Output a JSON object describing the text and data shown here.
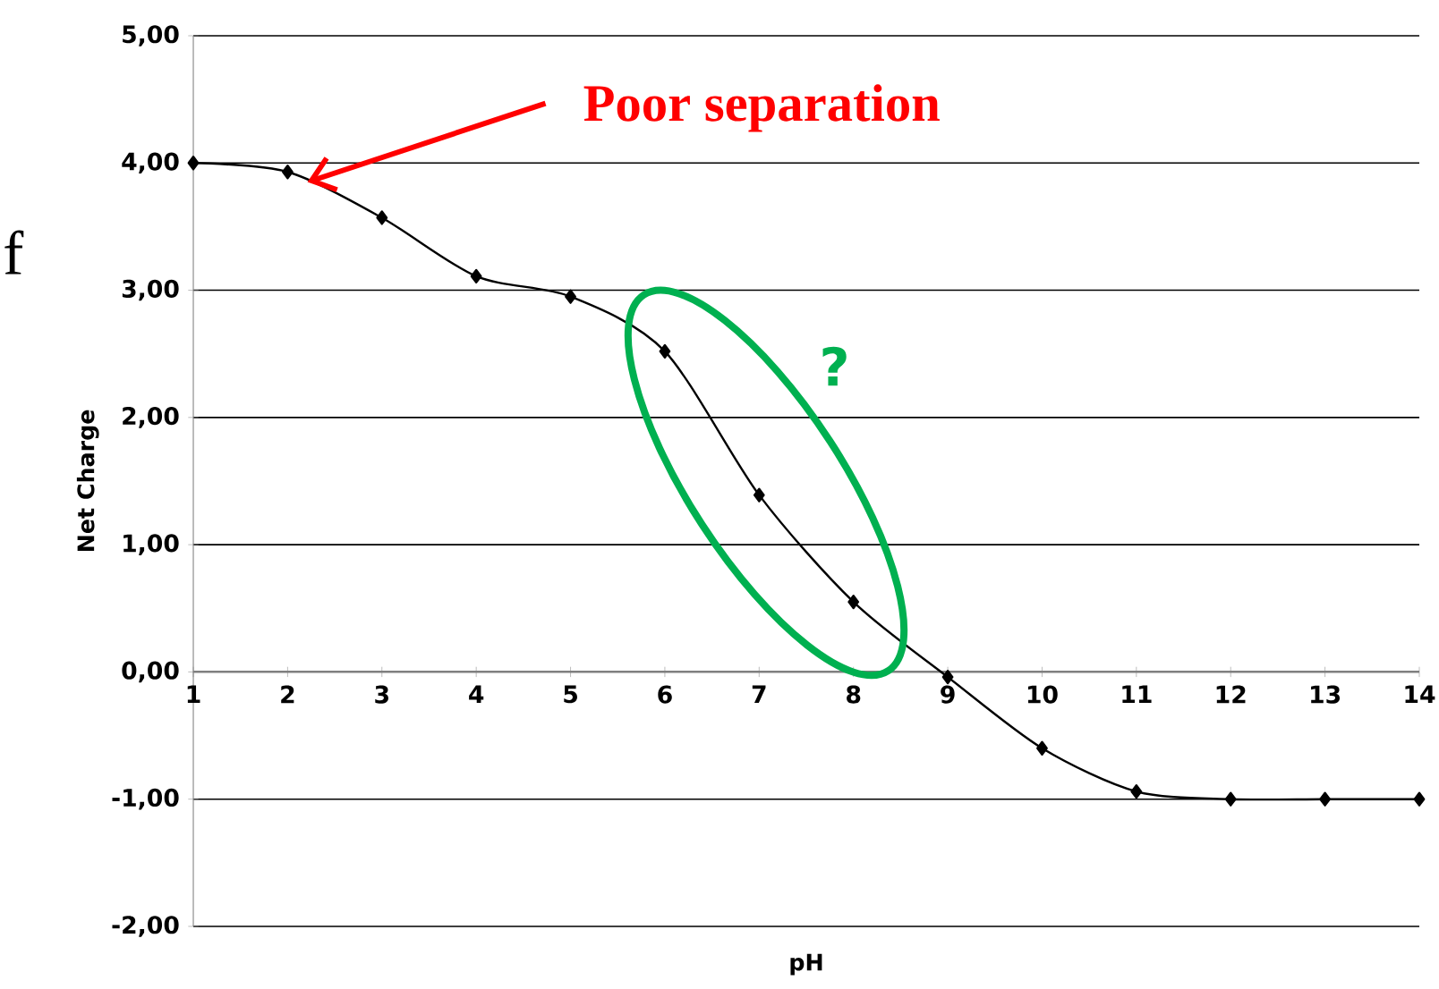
{
  "chart_data": {
    "type": "line",
    "xlabel": "pH",
    "ylabel": "Net Charge",
    "x": [
      1,
      2,
      3,
      4,
      5,
      6,
      7,
      8,
      9,
      10,
      11,
      12,
      13,
      14
    ],
    "values": [
      4.0,
      3.93,
      3.57,
      3.11,
      2.95,
      2.52,
      1.39,
      0.55,
      -0.04,
      -0.6,
      -0.94,
      -1.0,
      -1.0,
      -1.0
    ],
    "color": "#000000",
    "marker": "diamond",
    "line_style": "solid",
    "grid": "y",
    "xlim": [
      1,
      14
    ],
    "xticks": [
      1,
      2,
      3,
      4,
      5,
      6,
      7,
      8,
      9,
      10,
      11,
      12,
      13,
      14
    ],
    "ylim": [
      -2,
      5
    ],
    "yticks": [
      {
        "value": -2,
        "label": "-2,00"
      },
      {
        "value": -1,
        "label": "-1,00"
      },
      {
        "value": 0,
        "label": "0,00"
      },
      {
        "value": 1,
        "label": "1,00"
      },
      {
        "value": 2,
        "label": "2,00"
      },
      {
        "value": 3,
        "label": "3,00"
      },
      {
        "value": 4,
        "label": "4,00"
      },
      {
        "value": 5,
        "label": "5,00"
      }
    ],
    "annotations": [
      {
        "text": "Poor separation",
        "x": 2.21,
        "y": 3.85
      },
      "?",
      "f"
    ]
  }
}
